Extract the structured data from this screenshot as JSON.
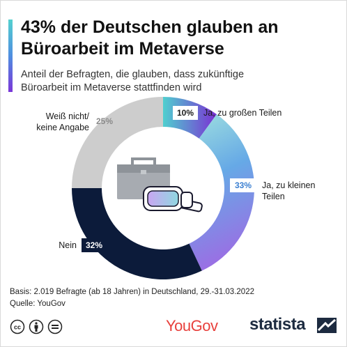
{
  "title_lines": [
    "43% der Deutschen glauben an",
    "Büroarbeit im Metaverse"
  ],
  "subtitle_lines": [
    "Anteil der Befragten, die glauben, dass zukünftige",
    "Büroarbeit im Metaverse stattfinden wird"
  ],
  "chart_data": {
    "type": "pie",
    "variant": "donut",
    "slices": [
      {
        "label": "Ja, zu großen Teilen",
        "value": 10,
        "display": "10%",
        "color": "#6b2fd6"
      },
      {
        "label": "Ja, zu kleinen Teilen",
        "value": 33,
        "display": "33%",
        "color": "#5a9be6"
      },
      {
        "label": "Nein",
        "value": 32,
        "display": "32%",
        "color": "#0c1b3a"
      },
      {
        "label": "Weiß nicht/ keine Angabe",
        "value": 25,
        "display": "25%",
        "color": "#cdcdcd"
      }
    ]
  },
  "footer": {
    "basis": "Basis: 2.019 Befragte (ab 18 Jahren) in Deutschland, 29.-31.03.2022",
    "source": "Quelle: YouGov"
  },
  "logos": {
    "yougov": "YouGov",
    "statista": "statista"
  },
  "icons": [
    "creative-commons-icon",
    "attribution-icon",
    "no-derivatives-icon",
    "briefcase-icon",
    "vr-headset-icon",
    "statista-logo-icon"
  ]
}
